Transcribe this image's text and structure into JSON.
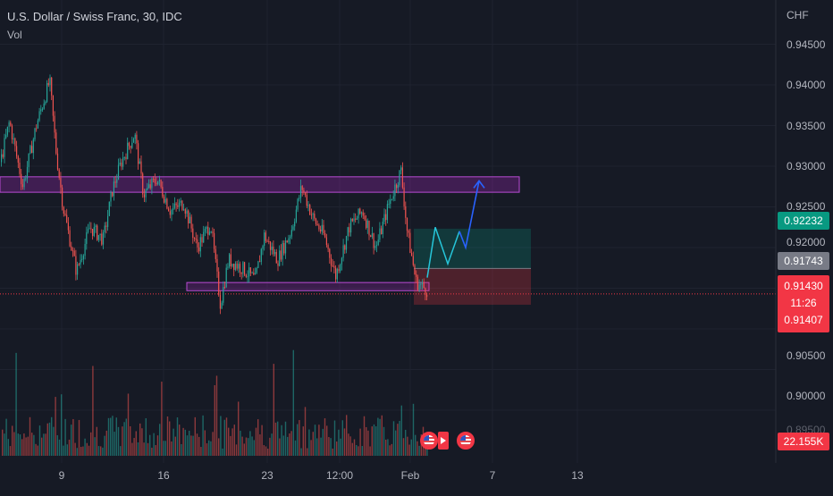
{
  "header": {
    "title": "U.S. Dollar / Swiss Franc, 30, IDC",
    "indicator": "Vol"
  },
  "price_axis": {
    "currency": "CHF",
    "labels": [
      "0.94500",
      "0.94000",
      "0.93500",
      "0.93000",
      "0.92500",
      "0.92000",
      "0.90500",
      "0.90000",
      "0.89500"
    ],
    "take_profit_badge": "0.92232",
    "entry_badge": "0.91743",
    "last_price": "0.91430",
    "countdown": "11:26",
    "stop_badge": "0.91407",
    "volume_badge": "22.155K"
  },
  "time_axis": {
    "labels": [
      "9",
      "16",
      "23",
      "12:00",
      "Feb",
      "7",
      "13"
    ]
  },
  "colors": {
    "background": "#161a25",
    "up": "#26a69a",
    "down": "#ef5350",
    "zone": "#9c27b0",
    "arrow": "#2962ff",
    "projection": "#26c6da",
    "take_profit": "#089981",
    "entry": "#787b86",
    "stop": "#f23645"
  },
  "icons": [
    "us-flag-event-icon",
    "play-event-icon",
    "us-flag-event-icon"
  ],
  "chart_data": {
    "type": "candlestick",
    "y_range": [
      0.895,
      0.9475
    ],
    "resistance_zone": [
      0.9268,
      0.9287
    ],
    "support_zone": [
      0.9147,
      0.9157
    ],
    "position": {
      "take_profit": 0.92232,
      "entry": 0.91743,
      "stop": 0.91407
    },
    "last_price": 0.9143
  }
}
